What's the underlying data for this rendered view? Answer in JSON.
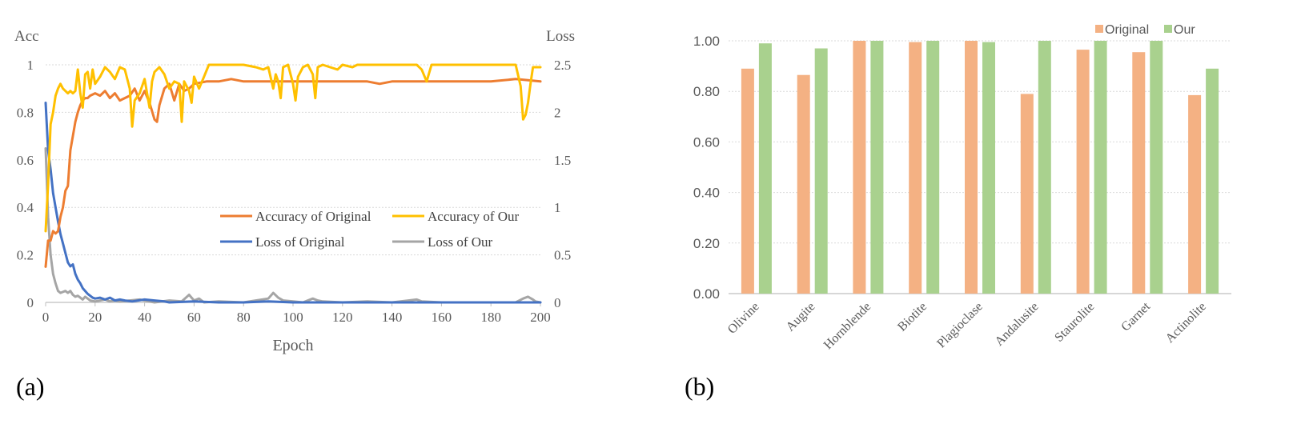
{
  "colors": {
    "acc_original": "#ED7D31",
    "acc_our": "#FFC000",
    "loss_original": "#4472C4",
    "loss_our": "#A5A5A5",
    "bar_original": "#F4B183",
    "bar_our": "#A9D18E",
    "grid": "#D9D9D9",
    "axis": "#BFBFBF",
    "tick_text": "#595959"
  },
  "panels": {
    "a": {
      "label": "(a)"
    },
    "b": {
      "label": "(b)"
    }
  },
  "chart_data": [
    {
      "type": "line",
      "panel": "(a)",
      "xlabel": "Epoch",
      "ylabel_left": "Acc",
      "ylabel_right": "Loss",
      "xlim": [
        0,
        200
      ],
      "ylim_left": [
        0,
        1
      ],
      "ylim_right": [
        0,
        2.5
      ],
      "x_ticks": [
        0,
        20,
        40,
        60,
        80,
        100,
        120,
        140,
        160,
        180,
        200
      ],
      "y_ticks_left": [
        "0",
        "0.2",
        "0.4",
        "0.6",
        "0.8",
        "1"
      ],
      "y_ticks_right": [
        "0",
        "0.5",
        "1",
        "1.5",
        "2",
        "2.5"
      ],
      "grid": true,
      "legend_position": "lower-right",
      "series": [
        {
          "name": "Accuracy of Original",
          "axis": "left",
          "color_key": "acc_original",
          "points": [
            [
              0,
              0.15
            ],
            [
              1,
              0.26
            ],
            [
              2,
              0.26
            ],
            [
              3,
              0.3
            ],
            [
              4,
              0.29
            ],
            [
              5,
              0.3
            ],
            [
              6,
              0.36
            ],
            [
              7,
              0.4
            ],
            [
              8,
              0.47
            ],
            [
              9,
              0.49
            ],
            [
              10,
              0.64
            ],
            [
              11,
              0.7
            ],
            [
              12,
              0.76
            ],
            [
              13,
              0.8
            ],
            [
              14,
              0.83
            ],
            [
              15,
              0.85
            ],
            [
              16,
              0.86
            ],
            [
              17,
              0.86
            ],
            [
              18,
              0.87
            ],
            [
              20,
              0.88
            ],
            [
              22,
              0.87
            ],
            [
              24,
              0.89
            ],
            [
              26,
              0.86
            ],
            [
              28,
              0.88
            ],
            [
              30,
              0.85
            ],
            [
              32,
              0.86
            ],
            [
              34,
              0.87
            ],
            [
              36,
              0.9
            ],
            [
              38,
              0.85
            ],
            [
              40,
              0.89
            ],
            [
              42,
              0.84
            ],
            [
              44,
              0.77
            ],
            [
              45,
              0.76
            ],
            [
              46,
              0.83
            ],
            [
              48,
              0.9
            ],
            [
              50,
              0.92
            ],
            [
              52,
              0.85
            ],
            [
              54,
              0.92
            ],
            [
              56,
              0.89
            ],
            [
              58,
              0.9
            ],
            [
              60,
              0.92
            ],
            [
              65,
              0.93
            ],
            [
              70,
              0.93
            ],
            [
              75,
              0.94
            ],
            [
              80,
              0.93
            ],
            [
              85,
              0.93
            ],
            [
              90,
              0.93
            ],
            [
              95,
              0.93
            ],
            [
              100,
              0.93
            ],
            [
              110,
              0.93
            ],
            [
              120,
              0.93
            ],
            [
              130,
              0.93
            ],
            [
              135,
              0.92
            ],
            [
              140,
              0.93
            ],
            [
              150,
              0.93
            ],
            [
              160,
              0.93
            ],
            [
              170,
              0.93
            ],
            [
              180,
              0.93
            ],
            [
              190,
              0.94
            ],
            [
              200,
              0.93
            ]
          ]
        },
        {
          "name": "Accuracy of Our",
          "axis": "left",
          "color_key": "acc_our",
          "points": [
            [
              0,
              0.3
            ],
            [
              1,
              0.5
            ],
            [
              2,
              0.75
            ],
            [
              3,
              0.8
            ],
            [
              4,
              0.87
            ],
            [
              5,
              0.9
            ],
            [
              6,
              0.92
            ],
            [
              7,
              0.9
            ],
            [
              8,
              0.89
            ],
            [
              9,
              0.88
            ],
            [
              10,
              0.89
            ],
            [
              11,
              0.88
            ],
            [
              12,
              0.89
            ],
            [
              13,
              0.98
            ],
            [
              14,
              0.88
            ],
            [
              15,
              0.82
            ],
            [
              16,
              0.96
            ],
            [
              17,
              0.97
            ],
            [
              18,
              0.9
            ],
            [
              19,
              0.98
            ],
            [
              20,
              0.92
            ],
            [
              22,
              0.95
            ],
            [
              24,
              0.99
            ],
            [
              26,
              0.97
            ],
            [
              28,
              0.94
            ],
            [
              30,
              0.99
            ],
            [
              32,
              0.98
            ],
            [
              34,
              0.9
            ],
            [
              35,
              0.74
            ],
            [
              36,
              0.85
            ],
            [
              38,
              0.88
            ],
            [
              40,
              0.94
            ],
            [
              42,
              0.82
            ],
            [
              43,
              0.93
            ],
            [
              44,
              0.97
            ],
            [
              46,
              0.99
            ],
            [
              48,
              0.96
            ],
            [
              50,
              0.9
            ],
            [
              52,
              0.93
            ],
            [
              54,
              0.92
            ],
            [
              55,
              0.76
            ],
            [
              56,
              0.93
            ],
            [
              58,
              0.89
            ],
            [
              59,
              0.84
            ],
            [
              60,
              0.95
            ],
            [
              62,
              0.9
            ],
            [
              64,
              0.95
            ],
            [
              66,
              1.0
            ],
            [
              70,
              1.0
            ],
            [
              80,
              1.0
            ],
            [
              85,
              0.99
            ],
            [
              88,
              0.98
            ],
            [
              90,
              0.99
            ],
            [
              92,
              0.9
            ],
            [
              93,
              0.96
            ],
            [
              94,
              0.93
            ],
            [
              95,
              0.86
            ],
            [
              96,
              0.99
            ],
            [
              98,
              1.0
            ],
            [
              100,
              0.92
            ],
            [
              101,
              0.85
            ],
            [
              102,
              0.95
            ],
            [
              104,
              0.99
            ],
            [
              106,
              1.0
            ],
            [
              108,
              0.96
            ],
            [
              109,
              0.86
            ],
            [
              110,
              0.99
            ],
            [
              112,
              1.0
            ],
            [
              115,
              0.99
            ],
            [
              118,
              0.98
            ],
            [
              120,
              1.0
            ],
            [
              124,
              0.99
            ],
            [
              126,
              1.0
            ],
            [
              140,
              1.0
            ],
            [
              150,
              1.0
            ],
            [
              152,
              0.98
            ],
            [
              154,
              0.93
            ],
            [
              156,
              1.0
            ],
            [
              170,
              1.0
            ],
            [
              180,
              1.0
            ],
            [
              190,
              1.0
            ],
            [
              192,
              0.91
            ],
            [
              193,
              0.77
            ],
            [
              194,
              0.79
            ],
            [
              195,
              0.84
            ],
            [
              196,
              0.92
            ],
            [
              197,
              0.99
            ],
            [
              200,
              0.99
            ]
          ]
        },
        {
          "name": "Loss of Original",
          "axis": "right",
          "color_key": "loss_original",
          "points": [
            [
              0,
              2.1
            ],
            [
              1,
              1.6
            ],
            [
              2,
              1.4
            ],
            [
              3,
              1.15
            ],
            [
              4,
              1.0
            ],
            [
              5,
              0.85
            ],
            [
              6,
              0.72
            ],
            [
              7,
              0.62
            ],
            [
              8,
              0.52
            ],
            [
              9,
              0.42
            ],
            [
              10,
              0.38
            ],
            [
              11,
              0.4
            ],
            [
              12,
              0.3
            ],
            [
              13,
              0.24
            ],
            [
              14,
              0.2
            ],
            [
              15,
              0.15
            ],
            [
              16,
              0.12
            ],
            [
              17,
              0.09
            ],
            [
              18,
              0.07
            ],
            [
              19,
              0.05
            ],
            [
              20,
              0.04
            ],
            [
              22,
              0.05
            ],
            [
              24,
              0.03
            ],
            [
              26,
              0.05
            ],
            [
              28,
              0.02
            ],
            [
              30,
              0.03
            ],
            [
              32,
              0.02
            ],
            [
              35,
              0.01
            ],
            [
              40,
              0.03
            ],
            [
              44,
              0.02
            ],
            [
              48,
              0.01
            ],
            [
              50,
              0.0
            ],
            [
              60,
              0.01
            ],
            [
              70,
              0.0
            ],
            [
              80,
              0.0
            ],
            [
              90,
              0.01
            ],
            [
              100,
              0.0
            ],
            [
              120,
              0.0
            ],
            [
              140,
              0.0
            ],
            [
              160,
              0.0
            ],
            [
              180,
              0.0
            ],
            [
              200,
              0.0
            ]
          ]
        },
        {
          "name": "Loss of Our",
          "axis": "right",
          "color_key": "loss_our",
          "points": [
            [
              0,
              1.62
            ],
            [
              1,
              0.9
            ],
            [
              2,
              0.5
            ],
            [
              3,
              0.3
            ],
            [
              4,
              0.2
            ],
            [
              5,
              0.12
            ],
            [
              6,
              0.1
            ],
            [
              7,
              0.11
            ],
            [
              8,
              0.12
            ],
            [
              9,
              0.1
            ],
            [
              10,
              0.12
            ],
            [
              11,
              0.08
            ],
            [
              12,
              0.06
            ],
            [
              13,
              0.07
            ],
            [
              14,
              0.05
            ],
            [
              15,
              0.03
            ],
            [
              16,
              0.06
            ],
            [
              17,
              0.04
            ],
            [
              18,
              0.02
            ],
            [
              20,
              0.01
            ],
            [
              22,
              0.02
            ],
            [
              24,
              0.03
            ],
            [
              26,
              0.01
            ],
            [
              28,
              0.02
            ],
            [
              30,
              0.01
            ],
            [
              34,
              0.02
            ],
            [
              38,
              0.03
            ],
            [
              40,
              0.02
            ],
            [
              44,
              0.0
            ],
            [
              50,
              0.02
            ],
            [
              55,
              0.01
            ],
            [
              58,
              0.08
            ],
            [
              59,
              0.05
            ],
            [
              60,
              0.02
            ],
            [
              62,
              0.04
            ],
            [
              64,
              0.0
            ],
            [
              70,
              0.01
            ],
            [
              80,
              0.0
            ],
            [
              85,
              0.02
            ],
            [
              90,
              0.04
            ],
            [
              92,
              0.1
            ],
            [
              94,
              0.05
            ],
            [
              96,
              0.02
            ],
            [
              100,
              0.01
            ],
            [
              104,
              0.0
            ],
            [
              108,
              0.04
            ],
            [
              110,
              0.02
            ],
            [
              112,
              0.01
            ],
            [
              120,
              0.0
            ],
            [
              130,
              0.01
            ],
            [
              140,
              0.0
            ],
            [
              150,
              0.03
            ],
            [
              152,
              0.01
            ],
            [
              160,
              0.0
            ],
            [
              170,
              0.0
            ],
            [
              180,
              0.0
            ],
            [
              190,
              0.0
            ],
            [
              193,
              0.04
            ],
            [
              195,
              0.06
            ],
            [
              197,
              0.03
            ],
            [
              198,
              0.01
            ],
            [
              200,
              0.0
            ]
          ]
        }
      ]
    },
    {
      "type": "bar",
      "panel": "(b)",
      "categories": [
        "Olivine",
        "Augite",
        "Hornblende",
        "Biotite",
        "Plagioclase",
        "Andalusite",
        "Staurolite",
        "Garnet",
        "Actinolite"
      ],
      "ylim": [
        0,
        1.0
      ],
      "y_ticks": [
        "0.00",
        "0.20",
        "0.40",
        "0.60",
        "0.80",
        "1.00"
      ],
      "grid": true,
      "legend_position": "top-right",
      "series": [
        {
          "name": "Original",
          "color_key": "bar_original",
          "values": [
            0.89,
            0.865,
            1.0,
            0.995,
            1.0,
            0.79,
            0.965,
            0.955,
            0.785
          ]
        },
        {
          "name": "Our",
          "color_key": "bar_our",
          "values": [
            0.99,
            0.97,
            1.0,
            1.0,
            0.995,
            1.0,
            1.0,
            1.0,
            0.89
          ]
        }
      ]
    }
  ]
}
